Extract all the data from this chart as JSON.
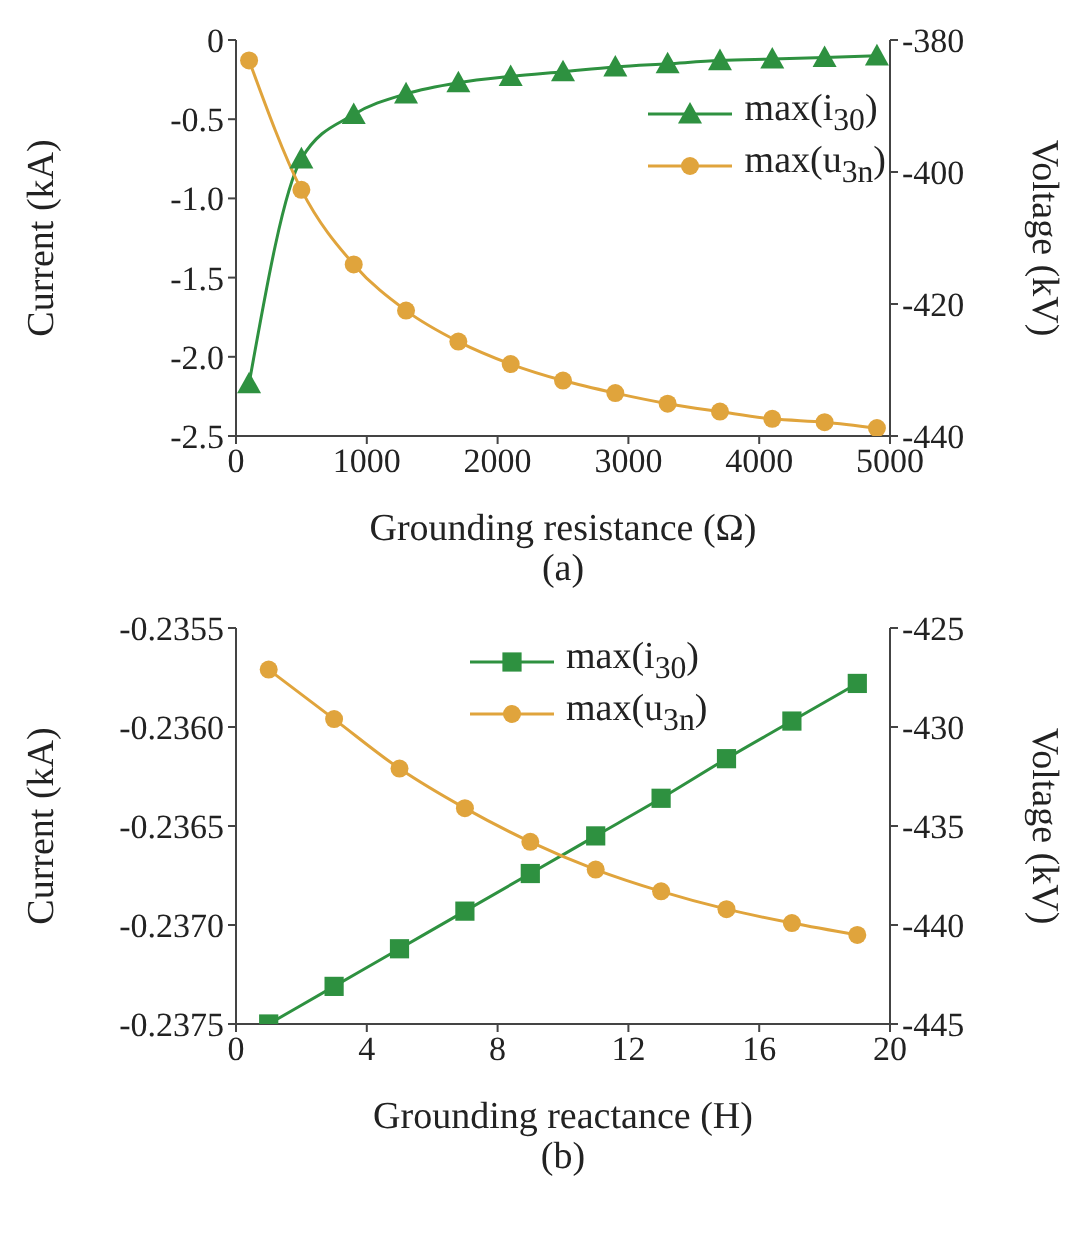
{
  "chart_data": [
    {
      "type": "line",
      "xlabel": "Grounding resistance (Ω)",
      "ylabel": "Current (kA)",
      "y2label": "Voltage (kV)",
      "annotations": [
        "(a)"
      ],
      "xlim": [
        0,
        5000
      ],
      "xticks": [
        0,
        1000,
        2000,
        3000,
        4000,
        5000
      ],
      "ylim": [
        -2.5,
        0
      ],
      "yticks": [
        -2.5,
        {
          "value": -2,
          "label": "-2.0"
        },
        -1.5,
        {
          "value": -1,
          "label": "-1.0"
        },
        -0.5,
        0
      ],
      "y2lim": [
        -440,
        -380
      ],
      "y2ticks": [
        -440,
        -420,
        -400,
        -380
      ],
      "grid": false,
      "legend": "top right",
      "series": [
        {
          "name": "max(i$_{30}$)",
          "color": "#2e9140",
          "marker": "triangle",
          "x": [
            100,
            500,
            900,
            1300,
            1700,
            2100,
            2500,
            2900,
            3300,
            3700,
            4100,
            4500,
            4900
          ],
          "values": [
            -2.17,
            -0.75,
            -0.47,
            -0.34,
            -0.27,
            -0.23,
            -0.2,
            -0.17,
            -0.15,
            -0.13,
            -0.12,
            -0.11,
            -0.1
          ]
        },
        {
          "name": "max(u$_{3n}$)",
          "color": "#e0a43c",
          "marker": "circle",
          "axis": "y2",
          "x": [
            100,
            500,
            900,
            1300,
            1700,
            2100,
            2500,
            2900,
            3300,
            3700,
            4100,
            4500,
            4900
          ],
          "values": [
            -383.1,
            -402.7,
            -414.0,
            -421.0,
            -425.7,
            -429.1,
            -431.6,
            -433.5,
            -435.1,
            -436.3,
            -437.4,
            -437.9,
            -438.8
          ]
        }
      ]
    },
    {
      "type": "line",
      "xlabel": "Grounding reactance (H)",
      "ylabel": "Current (kA)",
      "y2label": "Voltage (kV)",
      "annotations": [
        "(b)"
      ],
      "xlim": [
        0,
        20
      ],
      "xticks": [
        0,
        4,
        8,
        12,
        16,
        20
      ],
      "ylim": [
        -0.2375,
        -0.2355
      ],
      "yticks": [
        -0.2375,
        {
          "value": -0.237,
          "label": "-0.2370"
        },
        -0.2365,
        {
          "value": -0.236,
          "label": "-0.2360"
        },
        -0.2355
      ],
      "y2lim": [
        -445,
        -425
      ],
      "y2ticks": [
        -445,
        -440,
        -435,
        -430,
        -425
      ],
      "grid": false,
      "legend": "top",
      "series": [
        {
          "name": "max(i$_{30}$)",
          "color": "#2e9140",
          "marker": "square",
          "x": [
            1,
            3,
            5,
            7,
            9,
            11,
            13,
            15,
            17,
            19
          ],
          "values": [
            -0.2375,
            -0.23731,
            -0.23712,
            -0.23693,
            -0.23674,
            -0.23655,
            -0.23636,
            -0.23616,
            -0.23597,
            -0.23578
          ]
        },
        {
          "name": "max(u$_{3n}$)",
          "color": "#e0a43c",
          "marker": "circle",
          "axis": "y2",
          "x": [
            1,
            3,
            5,
            7,
            9,
            11,
            13,
            15,
            17,
            19
          ],
          "values": [
            -427.1,
            -429.6,
            -432.1,
            -434.1,
            -435.8,
            -437.2,
            -438.3,
            -439.2,
            -439.9,
            -440.5
          ]
        }
      ]
    }
  ]
}
